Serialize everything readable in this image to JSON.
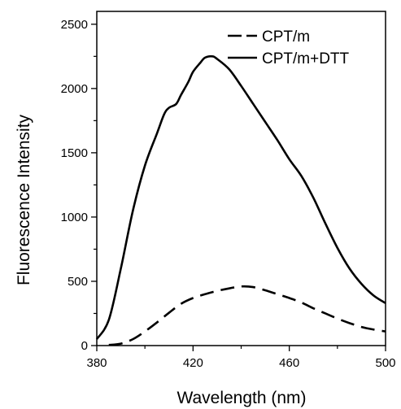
{
  "chart_data": {
    "type": "line",
    "title": "",
    "xlabel": "Wavelength (nm)",
    "ylabel": "Fluorescence Intensity",
    "xlim": [
      380,
      500
    ],
    "ylim": [
      0,
      2600
    ],
    "xticks": [
      380,
      420,
      460,
      500
    ],
    "xtick_labels": [
      "380",
      "420",
      "460",
      "500"
    ],
    "xminor": [
      400,
      440,
      480
    ],
    "yticks": [
      0,
      500,
      1000,
      1500,
      2000,
      2500
    ],
    "ytick_labels": [
      "0",
      "500",
      "1000",
      "1500",
      "2000",
      "2500"
    ],
    "yminor": [
      250,
      750,
      1250,
      1750,
      2250
    ],
    "grid": false,
    "legend_position": "top-right",
    "series": [
      {
        "name": "CPT/m",
        "style": "dashed",
        "color": "#000000",
        "x": [
          385,
          390,
          395,
          400,
          405,
          410,
          415,
          420,
          425,
          430,
          435,
          440,
          445,
          450,
          455,
          460,
          465,
          470,
          475,
          480,
          485,
          490,
          495,
          500
        ],
        "y": [
          5,
          15,
          50,
          110,
          180,
          255,
          325,
          370,
          400,
          425,
          445,
          460,
          455,
          430,
          400,
          370,
          335,
          290,
          250,
          210,
          175,
          145,
          125,
          110
        ]
      },
      {
        "name": "CPT/m+DTT",
        "style": "solid",
        "color": "#000000",
        "x": [
          380,
          385,
          390,
          395,
          400,
          405,
          408,
          410,
          413,
          415,
          418,
          420,
          423,
          425,
          428,
          430,
          435,
          440,
          445,
          450,
          455,
          460,
          465,
          470,
          475,
          480,
          485,
          490,
          495,
          500
        ],
        "y": [
          50,
          200,
          600,
          1050,
          1400,
          1650,
          1800,
          1850,
          1880,
          1950,
          2050,
          2130,
          2200,
          2240,
          2250,
          2230,
          2150,
          2020,
          1880,
          1740,
          1600,
          1450,
          1320,
          1150,
          950,
          760,
          600,
          480,
          390,
          330
        ]
      }
    ]
  }
}
